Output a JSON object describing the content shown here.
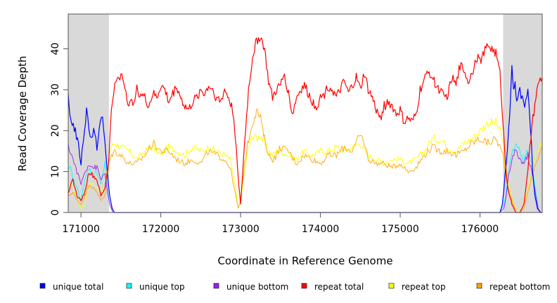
{
  "chart_data": {
    "type": "line",
    "title": "",
    "xlabel": "Coordinate in Reference Genome",
    "ylabel": "Read Coverage Depth",
    "xlim": [
      170840,
      176780
    ],
    "ylim": [
      0,
      48.5
    ],
    "x_ticks": [
      171000,
      172000,
      173000,
      174000,
      175000,
      176000
    ],
    "y_ticks": [
      0,
      10,
      20,
      30,
      40
    ],
    "shaded_regions": [
      {
        "from": 170840,
        "to": 171350,
        "color": "#d9d9d9"
      },
      {
        "from": 176290,
        "to": 176780,
        "color": "#d9d9d9"
      }
    ],
    "series": [
      {
        "name": "repeat top",
        "color": "#ffff00",
        "x": [
          170840,
          170900,
          170950,
          171000,
          171050,
          171100,
          171150,
          171200,
          171250,
          171300,
          171350,
          171380,
          171420,
          171500,
          171600,
          171700,
          171800,
          171900,
          172000,
          172100,
          172200,
          172300,
          172400,
          172500,
          172600,
          172700,
          172800,
          172870,
          172920,
          172950,
          172970,
          172990,
          173010,
          173050,
          173100,
          173150,
          173200,
          173250,
          173300,
          173350,
          173400,
          173450,
          173500,
          173600,
          173700,
          173800,
          173900,
          174000,
          174100,
          174200,
          174300,
          174400,
          174500,
          174550,
          174600,
          174700,
          174800,
          174900,
          175000,
          175100,
          175200,
          175300,
          175400,
          175500,
          175600,
          175700,
          175800,
          175900,
          176000,
          176100,
          176200,
          176250,
          176290,
          176330,
          176380,
          176420,
          176450,
          176500,
          176550,
          176600,
          176650,
          176700,
          176740,
          176780
        ],
        "y": [
          7,
          6,
          3,
          1,
          2,
          7,
          7,
          6,
          5,
          6,
          14,
          16,
          17,
          16,
          15,
          13,
          15,
          16,
          14,
          16,
          15,
          14,
          16,
          15,
          16,
          15,
          14,
          13,
          8,
          4,
          1,
          2,
          4,
          10,
          16,
          19,
          18,
          19,
          17,
          15,
          14,
          15,
          15,
          14,
          13,
          15,
          14,
          15,
          15,
          16,
          15,
          16,
          17,
          15,
          14,
          13,
          12,
          13,
          13,
          12,
          13,
          15,
          18,
          18,
          16,
          15,
          17,
          18,
          20,
          22,
          22,
          20,
          17,
          10,
          5,
          2,
          1,
          0,
          2,
          6,
          10,
          14,
          16,
          17
        ]
      },
      {
        "name": "repeat bottom",
        "color": "#ffa500",
        "x": [
          170840,
          170900,
          170950,
          171000,
          171050,
          171100,
          171150,
          171200,
          171250,
          171300,
          171350,
          171380,
          171420,
          171500,
          171600,
          171700,
          171800,
          171900,
          172000,
          172100,
          172200,
          172300,
          172400,
          172500,
          172600,
          172700,
          172800,
          172870,
          172920,
          172950,
          172970,
          172990,
          173010,
          173050,
          173100,
          173150,
          173200,
          173250,
          173300,
          173350,
          173400,
          173450,
          173500,
          173600,
          173700,
          173800,
          173900,
          174000,
          174100,
          174200,
          174300,
          174400,
          174500,
          174550,
          174600,
          174700,
          174800,
          174900,
          175000,
          175100,
          175200,
          175300,
          175400,
          175500,
          175600,
          175700,
          175800,
          175900,
          176000,
          176100,
          176200,
          176250,
          176290,
          176330,
          176380,
          176420,
          176450,
          176500,
          176550,
          176600,
          176650,
          176700,
          176740,
          176780
        ],
        "y": [
          4,
          5,
          3,
          2,
          4,
          7,
          6,
          5,
          3,
          4,
          12,
          14,
          15,
          14,
          12,
          12,
          14,
          17,
          15,
          15,
          13,
          12,
          13,
          12,
          15,
          14,
          13,
          11,
          6,
          3,
          1,
          2,
          5,
          12,
          18,
          22,
          25,
          23,
          18,
          14,
          13,
          14,
          16,
          15,
          12,
          14,
          13,
          12,
          14,
          14,
          16,
          15,
          19,
          17,
          13,
          12,
          12,
          11,
          12,
          10,
          11,
          14,
          16,
          15,
          15,
          14,
          15,
          17,
          18,
          17,
          18,
          16,
          14,
          8,
          4,
          2,
          0,
          0,
          1,
          5,
          9,
          12,
          14,
          16
        ]
      },
      {
        "name": "unique top",
        "color": "#00ffff",
        "x": [
          170840,
          170870,
          170900,
          170950,
          171000,
          171050,
          171100,
          171150,
          171200,
          171250,
          171300,
          171330,
          171360,
          171400,
          171600,
          172000,
          173000,
          174000,
          175000,
          176000,
          176250,
          176300,
          176330,
          176360,
          176400,
          176450,
          176500,
          176550,
          176600,
          176650,
          176700,
          176730,
          176760,
          176780
        ],
        "y": [
          10,
          11,
          8,
          6,
          3,
          8,
          11,
          9,
          10,
          7,
          12,
          6,
          2,
          0,
          0,
          0,
          0,
          0,
          0,
          0,
          0,
          2,
          5,
          10,
          14,
          17,
          15,
          13,
          15,
          12,
          5,
          1,
          0,
          0
        ]
      },
      {
        "name": "unique bottom",
        "color": "#a020f0",
        "x": [
          170840,
          170870,
          170900,
          170950,
          171000,
          171050,
          171100,
          171150,
          171200,
          171250,
          171300,
          171330,
          171360,
          171400,
          171600,
          172000,
          173000,
          174000,
          175000,
          176000,
          176250,
          176300,
          176330,
          176360,
          176400,
          176450,
          176500,
          176550,
          176600,
          176650,
          176700,
          176730,
          176760,
          176780
        ],
        "y": [
          16,
          15,
          13,
          10,
          7,
          10,
          12,
          11,
          11,
          8,
          10,
          5,
          2,
          0,
          0,
          0,
          0,
          0,
          0,
          0,
          0,
          1,
          4,
          9,
          13,
          15,
          13,
          12,
          14,
          10,
          4,
          1,
          0,
          0
        ]
      },
      {
        "name": "unique total",
        "color": "#0000ff",
        "x": [
          170840,
          170860,
          170890,
          170930,
          170970,
          171000,
          171030,
          171070,
          171100,
          171130,
          171160,
          171200,
          171240,
          171270,
          171300,
          171330,
          171360,
          171390,
          171420,
          171500,
          172000,
          173000,
          174000,
          175000,
          176000,
          176250,
          176280,
          176300,
          176330,
          176360,
          176380,
          176400,
          176420,
          176440,
          176460,
          176500,
          176530,
          176560,
          176600,
          176630,
          176660,
          176690,
          176720,
          176760,
          176780
        ],
        "y": [
          28,
          24,
          22,
          20,
          16,
          12,
          18,
          25,
          21,
          18,
          20,
          16,
          22,
          23,
          17,
          10,
          4,
          1,
          0,
          0,
          0,
          0,
          0,
          0,
          0,
          0,
          2,
          6,
          12,
          20,
          27,
          35,
          29,
          31,
          28,
          30,
          28,
          25,
          29,
          22,
          10,
          4,
          1,
          0,
          0
        ]
      },
      {
        "name": "repeat total",
        "color": "#ff0000",
        "x": [
          170840,
          170900,
          170950,
          171000,
          171050,
          171100,
          171150,
          171200,
          171250,
          171300,
          171350,
          171380,
          171410,
          171450,
          171500,
          171550,
          171600,
          171650,
          171700,
          171750,
          171800,
          171850,
          171900,
          171950,
          172000,
          172050,
          172100,
          172150,
          172200,
          172250,
          172300,
          172350,
          172400,
          172450,
          172500,
          172550,
          172600,
          172650,
          172700,
          172750,
          172800,
          172850,
          172900,
          172930,
          172960,
          172980,
          173000,
          173020,
          173050,
          173100,
          173150,
          173200,
          173250,
          173300,
          173350,
          173400,
          173450,
          173500,
          173550,
          173600,
          173650,
          173700,
          173750,
          173800,
          173850,
          173900,
          173950,
          174000,
          174050,
          174100,
          174150,
          174200,
          174250,
          174300,
          174350,
          174400,
          174450,
          174500,
          174550,
          174600,
          174650,
          174700,
          174750,
          174800,
          174850,
          174900,
          174950,
          175000,
          175050,
          175100,
          175150,
          175200,
          175250,
          175300,
          175350,
          175400,
          175450,
          175500,
          175550,
          175600,
          175650,
          175700,
          175750,
          175800,
          175850,
          175900,
          175950,
          176000,
          176050,
          176100,
          176150,
          176200,
          176250,
          176280,
          176300,
          176320,
          176350,
          176400,
          176450,
          176500,
          176550,
          176600,
          176650,
          176700,
          176740,
          176780
        ],
        "y": [
          5,
          8,
          4,
          3,
          5,
          10,
          9,
          8,
          4,
          6,
          13,
          25,
          30,
          32,
          34,
          31,
          26,
          27,
          30,
          29,
          28,
          26,
          29,
          28,
          31,
          30,
          27,
          29,
          31,
          28,
          26,
          25,
          27,
          28,
          30,
          29,
          31,
          30,
          28,
          27,
          30,
          28,
          25,
          20,
          12,
          6,
          2,
          8,
          17,
          30,
          38,
          42,
          43,
          40,
          32,
          28,
          30,
          31,
          34,
          29,
          24,
          28,
          30,
          31,
          29,
          27,
          26,
          28,
          29,
          31,
          30,
          28,
          30,
          32,
          29,
          31,
          33,
          30,
          34,
          30,
          28,
          25,
          23,
          26,
          27,
          26,
          24,
          25,
          22,
          23,
          22,
          24,
          30,
          32,
          35,
          33,
          31,
          30,
          28,
          29,
          33,
          31,
          36,
          35,
          32,
          34,
          38,
          37,
          39,
          41,
          40,
          39,
          34,
          25,
          18,
          12,
          6,
          2,
          0,
          0,
          2,
          10,
          21,
          28,
          32,
          33
        ]
      }
    ],
    "legend": {
      "placement": "bottom",
      "entries": [
        {
          "label": "unique total",
          "color": "#0000ff"
        },
        {
          "label": "unique top",
          "color": "#00ffff"
        },
        {
          "label": "unique bottom",
          "color": "#a020f0"
        },
        {
          "label": "repeat total",
          "color": "#ff0000"
        },
        {
          "label": "repeat top",
          "color": "#ffff00"
        },
        {
          "label": "repeat bottom",
          "color": "#ffa500"
        }
      ]
    }
  }
}
